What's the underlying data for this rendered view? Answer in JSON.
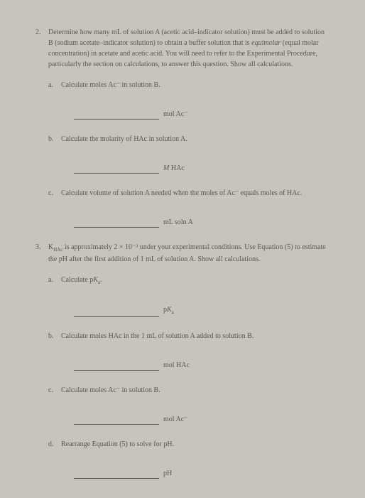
{
  "q2": {
    "number": "2.",
    "text_part1": "Determine how many mL of solution A (acetic acid–indicator solution) must be added to solution B (sodium acetate–indicator solution) to obtain a buffer solution that is ",
    "text_italic": "equimolar",
    "text_part2": " (equal molar concentration) in acetate and acetic acid. You will need to refer to the Experimental Procedure, particularly the section on calculations, to answer this question. Show all calculations.",
    "a": {
      "letter": "a.",
      "text": "Calculate moles Ac⁻ in solution B.",
      "unit": "mol Ac⁻"
    },
    "b": {
      "letter": "b.",
      "text": "Calculate the molarity of HAc in solution A.",
      "unit_prefix": "M",
      "unit_text": " HAc"
    },
    "c": {
      "letter": "c.",
      "text": "Calculate volume of solution A needed when the moles of Ac⁻ equals moles of HAc.",
      "unit": "mL soln A"
    }
  },
  "q3": {
    "number": "3.",
    "text_part1": "K",
    "text_sub1": "HAc",
    "text_part2": " is approximately 2 × 10",
    "text_sup": "⁻³",
    "text_part3": " under your experimental conditions. Use Equation (5) to estimate the pH after the first addition of 1 mL of solution A. Show all calculations.",
    "a": {
      "letter": "a.",
      "text_part1": "Calculate p",
      "text_italic": "K",
      "text_sub": "a",
      "text_part2": ".",
      "unit_prefix": "p",
      "unit_italic": "K",
      "unit_sub": "a"
    },
    "b": {
      "letter": "b.",
      "text": "Calculate moles HAc in the 1 mL of solution A added to solution B.",
      "unit": "mol HAc"
    },
    "c": {
      "letter": "c.",
      "text": "Calculate moles Ac⁻ in solution B.",
      "unit": "mol Ac⁻"
    },
    "d": {
      "letter": "d.",
      "text": "Rearrange Equation (5) to solve for pH.",
      "unit": "pH"
    }
  }
}
